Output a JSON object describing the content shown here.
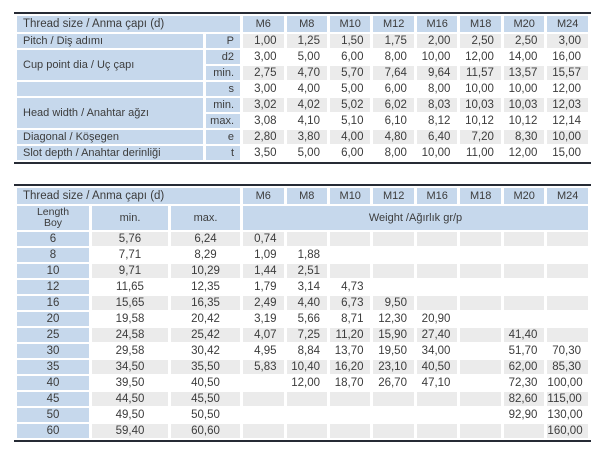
{
  "colors": {
    "header_blue": "#c6d8ec",
    "stripe_gray": "#ebebeb",
    "row_white": "#ffffff",
    "rule_dark": "#262b35",
    "text": "#3c3c3c"
  },
  "columns": [
    "M6",
    "M8",
    "M10",
    "M12",
    "M16",
    "M18",
    "M20",
    "M24"
  ],
  "dimensions_table": {
    "title": "Thread size / Anma çapı (d)",
    "groups": [
      {
        "label": "Pitch / Diş adımı",
        "subrows": [
          {
            "sym": "P",
            "values": [
              "1,00",
              "1,25",
              "1,50",
              "1,75",
              "2,00",
              "2,50",
              "2,50",
              "3,00"
            ]
          }
        ]
      },
      {
        "label": "Cup point dia / Uç çapı",
        "subrows": [
          {
            "sym": "d2",
            "values": [
              "3,00",
              "5,00",
              "6,00",
              "8,00",
              "10,00",
              "12,00",
              "14,00",
              "16,00"
            ]
          },
          {
            "sym": "min.",
            "values": [
              "2,75",
              "4,70",
              "5,70",
              "7,64",
              "9,64",
              "11,57",
              "13,57",
              "15,57"
            ]
          }
        ]
      },
      {
        "label": "",
        "subrows": [
          {
            "sym": "s",
            "values": [
              "3,00",
              "4,00",
              "5,00",
              "6,00",
              "8,00",
              "10,00",
              "10,00",
              "12,00"
            ]
          }
        ]
      },
      {
        "label": "Head width / Anahtar ağzı",
        "subrows": [
          {
            "sym": "min.",
            "values": [
              "3,02",
              "4,02",
              "5,02",
              "6,02",
              "8,03",
              "10,03",
              "10,03",
              "12,03"
            ]
          },
          {
            "sym": "max.",
            "values": [
              "3,08",
              "4,10",
              "5,10",
              "6,10",
              "8,12",
              "10,12",
              "10,12",
              "12,14"
            ]
          }
        ]
      },
      {
        "label": "Diagonal / Köşegen",
        "subrows": [
          {
            "sym": "e",
            "values": [
              "2,80",
              "3,80",
              "4,00",
              "4,80",
              "6,40",
              "7,20",
              "8,30",
              "10,00"
            ]
          }
        ]
      },
      {
        "label": "Slot depth / Anahtar derinliği",
        "subrows": [
          {
            "sym": "t",
            "values": [
              "3,50",
              "5,00",
              "6,00",
              "8,00",
              "10,00",
              "11,00",
              "12,00",
              "15,00"
            ]
          }
        ]
      }
    ]
  },
  "weights_table": {
    "title": "Thread size / Anma çapı (d)",
    "length_header_line1": "Length",
    "length_header_line2": "Boy",
    "min_header": "min.",
    "max_header": "max.",
    "weight_header": "Weight /Ağırlık gr/p",
    "rows": [
      {
        "length": "6",
        "min": "5,76",
        "max": "6,24",
        "weights": [
          "0,74",
          "",
          "",
          "",
          "",
          "",
          "",
          ""
        ]
      },
      {
        "length": "8",
        "min": "7,71",
        "max": "8,29",
        "weights": [
          "1,09",
          "1,88",
          "",
          "",
          "",
          "",
          "",
          ""
        ]
      },
      {
        "length": "10",
        "min": "9,71",
        "max": "10,29",
        "weights": [
          "1,44",
          "2,51",
          "",
          "",
          "",
          "",
          "",
          ""
        ]
      },
      {
        "length": "12",
        "min": "11,65",
        "max": "12,35",
        "weights": [
          "1,79",
          "3,14",
          "4,73",
          "",
          "",
          "",
          "",
          ""
        ]
      },
      {
        "length": "16",
        "min": "15,65",
        "max": "16,35",
        "weights": [
          "2,49",
          "4,40",
          "6,73",
          "9,50",
          "",
          "",
          "",
          ""
        ]
      },
      {
        "length": "20",
        "min": "19,58",
        "max": "20,42",
        "weights": [
          "3,19",
          "5,66",
          "8,71",
          "12,30",
          "20,90",
          "",
          "",
          ""
        ]
      },
      {
        "length": "25",
        "min": "24,58",
        "max": "25,42",
        "weights": [
          "4,07",
          "7,25",
          "11,20",
          "15,90",
          "27,40",
          "",
          "41,40",
          ""
        ]
      },
      {
        "length": "30",
        "min": "29,58",
        "max": "30,42",
        "weights": [
          "4,95",
          "8,84",
          "13,70",
          "19,50",
          "34,00",
          "",
          "51,70",
          "70,30"
        ]
      },
      {
        "length": "35",
        "min": "34,50",
        "max": "35,50",
        "weights": [
          "5,83",
          "10,40",
          "16,20",
          "23,10",
          "40,50",
          "",
          "62,00",
          "85,30"
        ]
      },
      {
        "length": "40",
        "min": "39,50",
        "max": "40,50",
        "weights": [
          "",
          "12,00",
          "18,70",
          "26,70",
          "47,10",
          "",
          "72,30",
          "100,00"
        ]
      },
      {
        "length": "45",
        "min": "44,50",
        "max": "45,50",
        "weights": [
          "",
          "",
          "",
          "",
          "",
          "",
          "82,60",
          "115,00"
        ]
      },
      {
        "length": "50",
        "min": "49,50",
        "max": "50,50",
        "weights": [
          "",
          "",
          "",
          "",
          "",
          "",
          "92,90",
          "130,00"
        ]
      },
      {
        "length": "60",
        "min": "59,40",
        "max": "60,60",
        "weights": [
          "",
          "",
          "",
          "",
          "",
          "",
          "",
          "160,00"
        ]
      }
    ]
  }
}
